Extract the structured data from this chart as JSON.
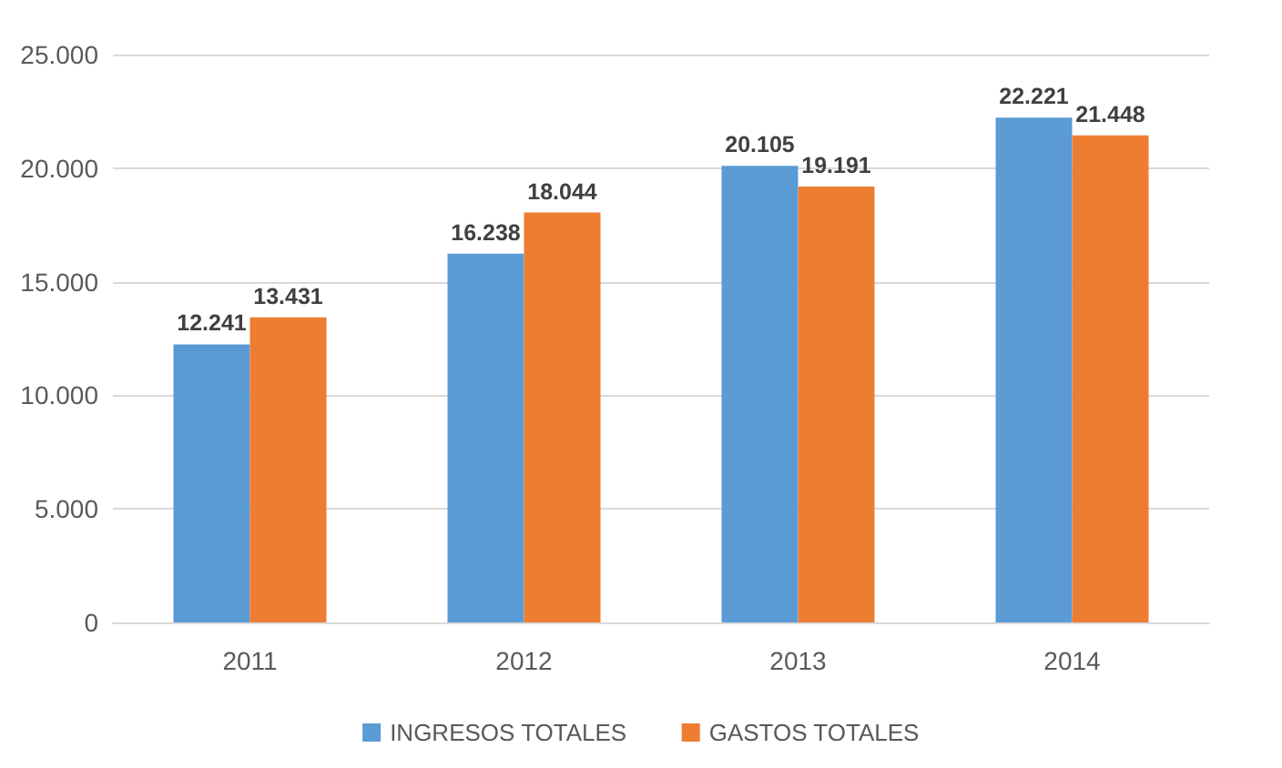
{
  "chart_data": {
    "type": "bar",
    "categories": [
      "2011",
      "2012",
      "2013",
      "2014"
    ],
    "series": [
      {
        "name": "INGRESOS TOTALES",
        "color": "#5b9bd5",
        "values": [
          12241,
          16238,
          20105,
          22221
        ],
        "value_labels": [
          "12.241",
          "16.238",
          "20.105",
          "22.221"
        ]
      },
      {
        "name": "GASTOS TOTALES",
        "color": "#ed7d31",
        "values": [
          13431,
          18044,
          19191,
          21448
        ],
        "value_labels": [
          "13.431",
          "18.044",
          "19.191",
          "21.448"
        ]
      }
    ],
    "ylim": [
      0,
      25000
    ],
    "yticks": [
      {
        "value": 0,
        "label": "0"
      },
      {
        "value": 5000,
        "label": "5.000"
      },
      {
        "value": 10000,
        "label": "10.000"
      },
      {
        "value": 15000,
        "label": "15.000"
      },
      {
        "value": 20000,
        "label": "20.000"
      },
      {
        "value": 25000,
        "label": "25.000"
      }
    ],
    "grid": "y",
    "legend": "bottom"
  }
}
